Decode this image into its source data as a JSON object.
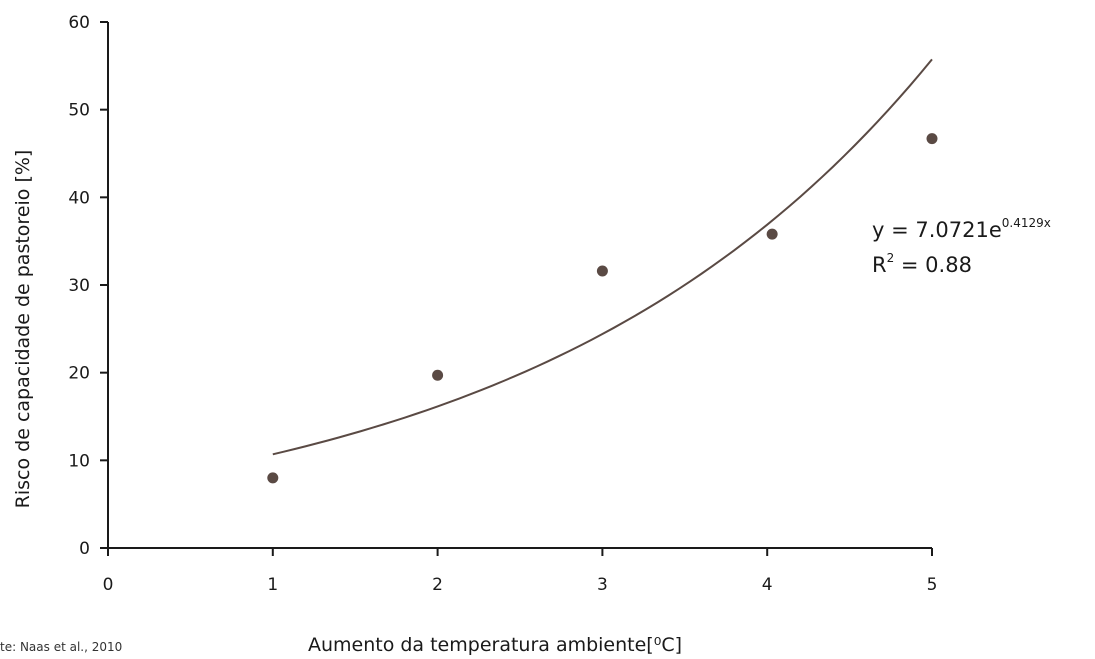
{
  "chart_data": {
    "type": "scatter",
    "xlabel": "Aumento da temperatura ambiente[⁰C]",
    "ylabel": "Risco de capacidade de pastoreio [%]",
    "xlim": [
      0,
      5
    ],
    "ylim": [
      0,
      60
    ],
    "x_ticks": [
      "0",
      "1",
      "2",
      "3",
      "4",
      "5"
    ],
    "y_ticks": [
      "0",
      "10",
      "20",
      "30",
      "40",
      "50",
      "60"
    ],
    "grid": false,
    "points": [
      {
        "x": 1,
        "y": 8
      },
      {
        "x": 2,
        "y": 19.7
      },
      {
        "x": 3,
        "y": 31.6
      },
      {
        "x": 4.03,
        "y": 35.8
      },
      {
        "x": 5,
        "y": 46.7
      }
    ],
    "trendline": {
      "type": "exponential",
      "a": 7.0721,
      "b": 0.4129,
      "x_range": [
        1,
        5
      ],
      "equation_base": "y = 7.0721e",
      "equation_exponent": "0.4129x",
      "r2_base": "R",
      "r2_exponent": "2",
      "r2_value": " = 0.88"
    },
    "colors": {
      "point": "#5a4a44",
      "line": "#5a4a44",
      "axis": "#1a1a1a"
    }
  },
  "source_note": "te: Naas et al., 2010"
}
